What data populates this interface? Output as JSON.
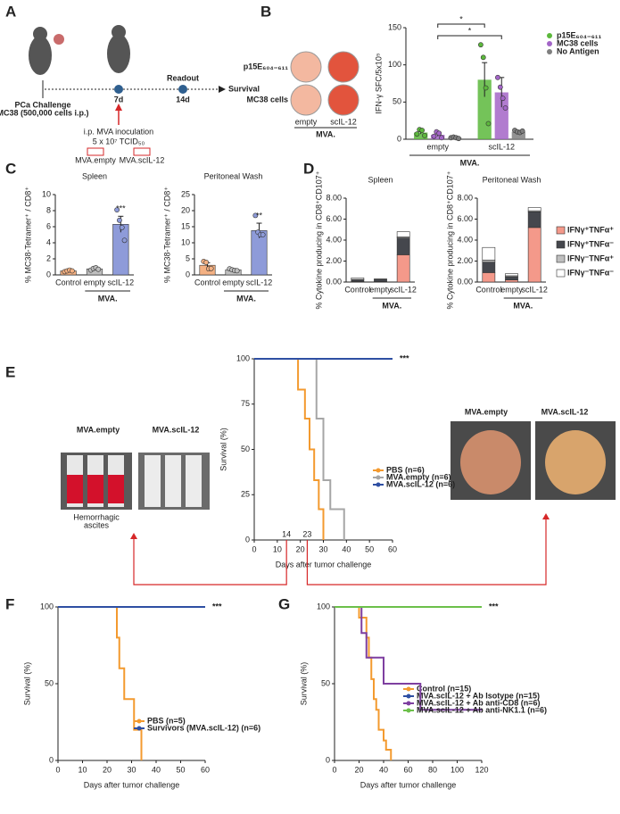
{
  "panel_labels": [
    "A",
    "B",
    "C",
    "D",
    "E",
    "F",
    "G"
  ],
  "diagram_a": {
    "challenge": "PCa Challenge",
    "cells": "MC38 (500,000 cells i.p.)",
    "day7": "7d",
    "day14": "14d",
    "readout": "Readout",
    "survival": "Survival",
    "inoculation": "i.p. MVA inoculation",
    "dose": "5 x 10⁷ TCID₅₀",
    "vectors": [
      "MVA.empty",
      "MVA.scIL-12"
    ]
  },
  "panel_b_images": {
    "rows": [
      "p15E₆₀₄₋₆₁₁",
      "MC38 cells"
    ],
    "columns": [
      "empty",
      "scIL-12"
    ],
    "group_label": "MVA."
  },
  "panel_e_images": {
    "left": [
      "MVA.empty",
      "MVA.scIL-12"
    ],
    "caption": [
      "Hemorrhagic",
      "ascites"
    ],
    "right": [
      "MVA.empty",
      "MVA.scIL-12"
    ]
  },
  "chart_data": [
    {
      "type": "bar",
      "ylabel": "IFN-γ SFC/5x10⁵",
      "categories": [
        "empty",
        "scIL-12"
      ],
      "group_label": "MVA.",
      "series": [
        {
          "name": "p15E₆₀₄₋₆₁₁",
          "color": "#5cb83c",
          "values": [
            9,
            80
          ],
          "errors": [
            2,
            23
          ],
          "points": [
            [
              7,
              13,
              12,
              5
            ],
            [
              127,
              110,
              69,
              21
            ]
          ]
        },
        {
          "name": "MC38 cells",
          "color": "#a365c7",
          "values": [
            6,
            63
          ],
          "errors": [
            2,
            20
          ],
          "points": [
            [
              4,
              10,
              8,
              2
            ],
            [
              83,
              70,
              55,
              42
            ]
          ]
        },
        {
          "name": "No Antigen",
          "color": "#7f7f7f",
          "values": [
            2,
            10
          ],
          "errors": [
            1,
            2
          ],
          "points": [
            [
              2,
              3,
              2,
              1
            ],
            [
              12,
              10,
              9,
              11
            ]
          ]
        }
      ],
      "ylim": [
        0,
        150
      ],
      "yticks": [
        0,
        50,
        100,
        150
      ],
      "significance": [
        "*",
        "*"
      ]
    },
    {
      "type": "bar",
      "title": "Spleen",
      "ylabel": "% MC38-Tetramer⁺ / CD8⁺",
      "categories": [
        "Control",
        "empty",
        "scIL-12"
      ],
      "group_label": "MVA.",
      "colors": [
        "#f4b183",
        "#bfbfbf",
        "#8e9bd9"
      ],
      "values": [
        0.5,
        0.75,
        6.3
      ],
      "errors": [
        0.1,
        0.1,
        1.0
      ],
      "points": [
        [
          0.4,
          0.5,
          0.6,
          0.5
        ],
        [
          0.6,
          0.8,
          0.9,
          0.7
        ],
        [
          8.1,
          6.8,
          5.9,
          4.3
        ]
      ],
      "ylim": [
        0,
        10
      ],
      "yticks": [
        0,
        2,
        4,
        6,
        8,
        10
      ],
      "significance": [
        "***"
      ]
    },
    {
      "type": "bar",
      "title": "Peritoneal Wash",
      "ylabel": "% MC38-Tetramer⁺ / CD8⁺",
      "categories": [
        "Control",
        "empty",
        "scIL-12"
      ],
      "group_label": "MVA.",
      "colors": [
        "#f4b183",
        "#bfbfbf",
        "#8e9bd9"
      ],
      "values": [
        3.0,
        1.6,
        13.8
      ],
      "errors": [
        0.8,
        0.2,
        2.3
      ],
      "points": [
        [
          4.2,
          3.9,
          1.9,
          2.0
        ],
        [
          1.9,
          1.6,
          1.4,
          1.3
        ],
        [
          18.5,
          13.3,
          12.5,
          12.5
        ]
      ],
      "ylim": [
        0,
        25
      ],
      "yticks": [
        0,
        5,
        10,
        15,
        20,
        25
      ],
      "significance": [
        "**"
      ]
    },
    {
      "type": "bar",
      "stacked": true,
      "title": "Spleen",
      "ylabel": "% Cytokine producing in CD8⁺CD107⁺",
      "categories": [
        "Control",
        "empty",
        "scIL-12"
      ],
      "group_label": "MVA.",
      "series": [
        {
          "color": "#f4998a",
          "values": [
            0.05,
            0.05,
            2.6
          ]
        },
        {
          "color": "#45474d",
          "values": [
            0.15,
            0.2,
            1.6
          ]
        },
        {
          "color": "#bfbfbf",
          "values": [
            0.05,
            0.02,
            0.1
          ]
        },
        {
          "color": "#ffffff",
          "values": [
            0.15,
            0.03,
            0.5
          ]
        }
      ],
      "ylim": [
        0,
        8
      ],
      "yticks": [
        {
          "value": 0,
          "label": "0.00"
        },
        {
          "value": 2,
          "label": "2.00"
        },
        {
          "value": 4,
          "label": "4.00"
        },
        {
          "value": 6,
          "label": "6.00"
        },
        {
          "value": 8,
          "label": "8.00"
        }
      ]
    },
    {
      "type": "bar",
      "stacked": true,
      "title": "Peritoneal Wash",
      "ylabel": "% Cytokine producing in CD8⁺CD107⁺",
      "categories": [
        "Control",
        "empty",
        "scIL-12"
      ],
      "group_label": "MVA.",
      "series": [
        {
          "name": "IFNγ⁺TNFα⁺",
          "color": "#f4998a",
          "values": [
            0.9,
            0.2,
            5.2
          ]
        },
        {
          "name": "IFNγ⁺TNFα⁻",
          "color": "#45474d",
          "values": [
            1.0,
            0.3,
            1.5
          ]
        },
        {
          "name": "IFNγ⁻TNFα⁺",
          "color": "#bfbfbf",
          "values": [
            0.2,
            0.1,
            0.1
          ]
        },
        {
          "name": "IFNγ⁻TNFα⁻",
          "color": "#ffffff",
          "values": [
            1.2,
            0.2,
            0.3
          ]
        }
      ],
      "ylim": [
        0,
        8
      ],
      "yticks": [
        {
          "value": 0,
          "label": "0.00"
        },
        {
          "value": 2,
          "label": "2.00"
        },
        {
          "value": 4,
          "label": "4.00"
        },
        {
          "value": 6,
          "label": "6.00"
        },
        {
          "value": 8,
          "label": "8.00"
        }
      ]
    },
    {
      "type": "line",
      "ylabel": "Survival (%)",
      "xlabel": "Days after tumor challenge",
      "series": [
        {
          "name": "PBS (n=6)",
          "color": "#f39a2f",
          "x": [
            0,
            19,
            19,
            22,
            22,
            24,
            24,
            26,
            26,
            28,
            28,
            30,
            30
          ],
          "values": [
            100,
            100,
            83,
            83,
            67,
            67,
            50,
            50,
            33,
            33,
            17,
            17,
            0
          ]
        },
        {
          "name": "MVA.empty (n=6)",
          "color": "#a6a6a6",
          "x": [
            0,
            27,
            27,
            30,
            30,
            33,
            33,
            39,
            39
          ],
          "values": [
            100,
            100,
            67,
            67,
            33,
            33,
            17,
            17,
            0
          ]
        },
        {
          "name": "MVA.scIL-12 (n=6)",
          "color": "#2e4fa3",
          "x": [
            0,
            60
          ],
          "values": [
            100,
            100
          ]
        }
      ],
      "xlim": [
        0,
        60
      ],
      "xticks": [
        0,
        10,
        20,
        30,
        40,
        50,
        60
      ],
      "ylim": [
        0,
        100
      ],
      "yticks": [
        0,
        25,
        50,
        75,
        100
      ],
      "markers": [
        14,
        23
      ],
      "significance": [
        "***"
      ]
    },
    {
      "type": "line",
      "ylabel": "Survival (%)",
      "xlabel": "Days after tumor challenge",
      "series": [
        {
          "name": "PBS (n=5)",
          "color": "#f39a2f",
          "x": [
            0,
            24,
            24,
            25,
            25,
            27,
            27,
            31,
            31,
            34,
            34
          ],
          "values": [
            100,
            100,
            80,
            80,
            60,
            60,
            40,
            40,
            20,
            20,
            0
          ]
        },
        {
          "name": "Survivors (MVA.scIL-12) (n=6)",
          "color": "#2e4fa3",
          "x": [
            0,
            60
          ],
          "values": [
            100,
            100
          ]
        }
      ],
      "xlim": [
        0,
        60
      ],
      "xticks": [
        0,
        10,
        20,
        30,
        40,
        50,
        60
      ],
      "ylim": [
        0,
        100
      ],
      "yticks": [
        0,
        50,
        100
      ],
      "significance": [
        "***"
      ]
    },
    {
      "type": "line",
      "ylabel": "Survival (%)",
      "xlabel": "Days after tumor challenge",
      "series": [
        {
          "name": "Control (n=15)",
          "color": "#f39a2f",
          "x": [
            0,
            20,
            20,
            26,
            26,
            28,
            28,
            30,
            30,
            32,
            32,
            34,
            34,
            36,
            36,
            40,
            40,
            42,
            42,
            46,
            46
          ],
          "values": [
            100,
            100,
            93,
            93,
            80,
            80,
            67,
            67,
            53,
            53,
            40,
            40,
            33,
            33,
            20,
            20,
            13,
            13,
            7,
            7,
            0
          ]
        },
        {
          "name": "MVA.scIL-12 + Ab Isotype (n=15)",
          "color": "#2e4fa3",
          "x": [
            0,
            120
          ],
          "values": [
            100,
            100
          ]
        },
        {
          "name": "MVA.scIL-12 + Ab anti-CD8 (n=6)",
          "color": "#7e3fa0",
          "x": [
            0,
            22,
            22,
            26,
            26,
            40,
            40,
            70,
            70,
            120
          ],
          "values": [
            100,
            100,
            83,
            83,
            67,
            67,
            50,
            50,
            33,
            33
          ]
        },
        {
          "name": "MVA.scIL-12 + Ab anti-NK1.1 (n=6)",
          "color": "#6cc04a",
          "x": [
            0,
            120
          ],
          "values": [
            100,
            100
          ]
        }
      ],
      "xlim": [
        0,
        120
      ],
      "xticks": [
        0,
        20,
        40,
        60,
        80,
        100,
        120
      ],
      "ylim": [
        0,
        100
      ],
      "yticks": [
        0,
        50,
        100
      ],
      "significance": [
        "***"
      ]
    }
  ]
}
